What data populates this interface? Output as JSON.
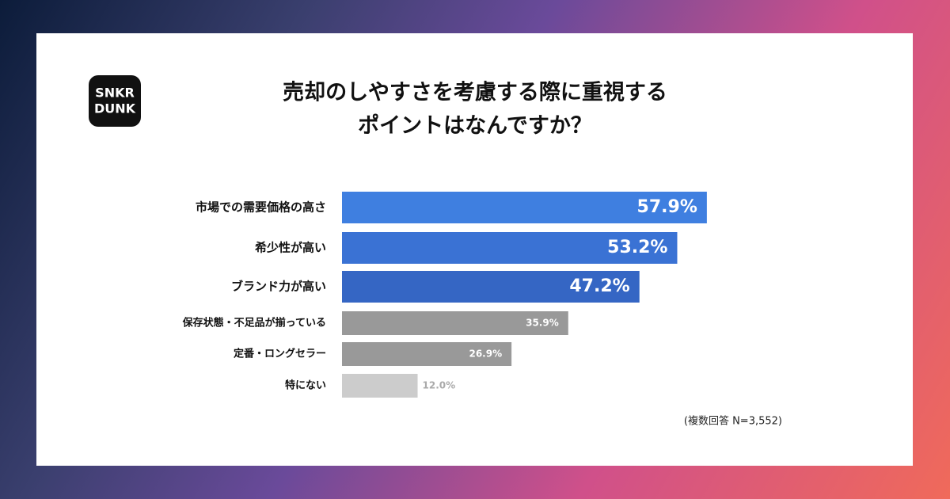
{
  "logo": [
    "SNKR",
    "DUNK"
  ],
  "chart_data": {
    "type": "bar",
    "orientation": "horizontal",
    "title": [
      "売却のしやすさを考慮する際に重視する",
      "ポイントはなんですか？"
    ],
    "categories": [
      "市場での需要価格の高さ",
      "希少性が高い",
      "ブランド力が高い",
      "保存状態・不足品が揃っている",
      "定番・ロングセラー",
      "特にない"
    ],
    "values": [
      57.9,
      53.2,
      47.2,
      35.9,
      26.9,
      12.0
    ],
    "value_labels": [
      "57.9%",
      "53.2%",
      "47.2%",
      "35.9%",
      "26.9%",
      "12.0%"
    ],
    "colors": [
      "#3f7fe0",
      "#3a72d4",
      "#3566c4",
      "#999999",
      "#999999",
      "#cccccc"
    ],
    "note": "(複数回答 N=3,552)"
  }
}
